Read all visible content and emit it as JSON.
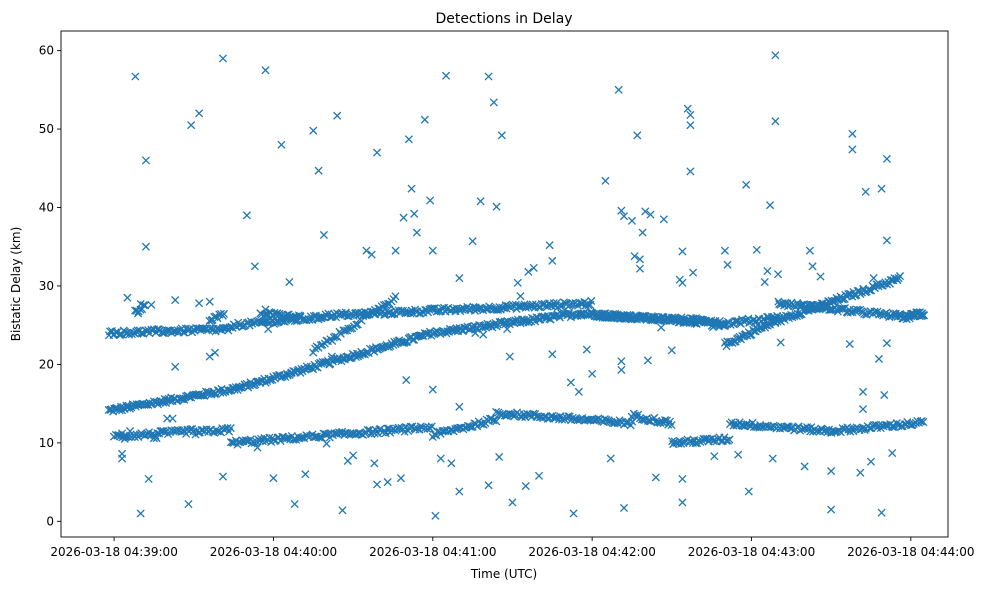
{
  "chart_data": {
    "type": "scatter",
    "title": "Detections in Delay",
    "xlabel": "Time (UTC)",
    "ylabel": "Bistatic Delay (km)",
    "x_unit": "seconds after 2026-03-18 04:39:00 UTC",
    "xlim": [
      -20,
      314
    ],
    "ylim": [
      -2,
      62.5
    ],
    "xticks": [
      {
        "value": 0,
        "label": "2026-03-18 04:39:00"
      },
      {
        "value": 60,
        "label": "2026-03-18 04:40:00"
      },
      {
        "value": 120,
        "label": "2026-03-18 04:41:00"
      },
      {
        "value": 180,
        "label": "2026-03-18 04:42:00"
      },
      {
        "value": 240,
        "label": "2026-03-18 04:43:00"
      },
      {
        "value": 300,
        "label": "2026-03-18 04:44:00"
      }
    ],
    "yticks": [
      0,
      10,
      20,
      30,
      40,
      50,
      60
    ],
    "marker": "x",
    "color": "#1f77b4",
    "grid": false,
    "tracks": [
      {
        "x": [
          [
            -2,
            47
          ],
          [
            47,
            120
          ],
          [
            120,
            176
          ],
          [
            176,
            230
          ],
          [
            230,
            249
          ],
          [
            249,
            296
          ],
          [
            296,
            305
          ]
        ],
        "y": [
          [
            14.1,
            17
          ],
          [
            17,
            24
          ],
          [
            24,
            26.5
          ],
          [
            26.5,
            25.2
          ],
          [
            22.5,
            25.5
          ],
          [
            25.5,
            31
          ],
          [
            26,
            26.5
          ]
        ],
        "step": 0.5
      },
      {
        "x": [
          [
            -2,
            45
          ],
          [
            45,
            78
          ],
          [
            78,
            180
          ],
          [
            180,
            225
          ],
          [
            225,
            250
          ],
          [
            250,
            300
          ],
          [
            300,
            305
          ]
        ],
        "y": [
          [
            24,
            24.5
          ],
          [
            25,
            26
          ],
          [
            26.2,
            27.8
          ],
          [
            26.3,
            25.5
          ],
          [
            25,
            26
          ],
          [
            27.8,
            26
          ],
          [
            26.3,
            26.5
          ]
        ],
        "step": 0.55
      },
      {
        "x": [
          [
            0,
            30
          ],
          [
            30,
            44
          ],
          [
            44,
            120
          ],
          [
            120,
            144
          ],
          [
            144,
            195
          ],
          [
            195,
            210
          ],
          [
            210,
            232
          ],
          [
            232,
            270
          ],
          [
            270,
            305
          ]
        ],
        "y": [
          [
            10.8,
            11.5
          ],
          [
            11.3,
            11.7
          ],
          [
            10,
            12
          ],
          [
            11,
            13
          ],
          [
            13.8,
            12.5
          ],
          [
            13.5,
            12.5
          ],
          [
            10,
            10.5
          ],
          [
            12.5,
            11.5
          ],
          [
            11.5,
            12.6
          ]
        ],
        "step": 0.6
      },
      {
        "x": [
          [
            75,
            106
          ]
        ],
        "y": [
          [
            21.7,
            28.5
          ]
        ],
        "step": 0.7
      },
      {
        "x": [
          [
            8,
            12
          ],
          [
            36,
            42
          ],
          [
            55,
            70
          ]
        ],
        "y": [
          [
            26.8,
            27.5
          ],
          [
            25.8,
            26.3
          ],
          [
            26.5,
            26.0
          ]
        ],
        "step": 0.6
      }
    ],
    "outliers": [
      [
        5,
        28.5
      ],
      [
        6,
        11.5
      ],
      [
        3,
        8
      ],
      [
        3,
        8.6
      ],
      [
        3,
        11.2
      ],
      [
        4,
        10.5
      ],
      [
        8,
        56.7
      ],
      [
        9,
        26.5
      ],
      [
        10,
        1
      ],
      [
        10,
        27.7
      ],
      [
        12,
        46
      ],
      [
        12,
        35
      ],
      [
        13,
        5.4
      ],
      [
        14,
        27.6
      ],
      [
        15,
        10.6
      ],
      [
        16,
        10.6
      ],
      [
        20,
        13.1
      ],
      [
        22,
        13.1
      ],
      [
        23,
        19.7
      ],
      [
        23,
        28.2
      ],
      [
        28,
        2.2
      ],
      [
        29,
        50.5
      ],
      [
        32,
        52
      ],
      [
        32,
        27.8
      ],
      [
        33,
        24.5
      ],
      [
        36,
        28
      ],
      [
        36,
        21
      ],
      [
        38,
        21.5
      ],
      [
        41,
        59
      ],
      [
        41,
        5.7
      ],
      [
        50,
        39
      ],
      [
        53,
        32.5
      ],
      [
        54,
        9.4
      ],
      [
        57,
        57.5
      ],
      [
        57,
        27
      ],
      [
        58,
        24.5
      ],
      [
        60,
        5.5
      ],
      [
        63,
        48
      ],
      [
        66,
        30.5
      ],
      [
        66,
        26
      ],
      [
        68,
        2.2
      ],
      [
        72,
        6
      ],
      [
        75,
        49.8
      ],
      [
        77,
        44.7
      ],
      [
        79,
        36.5
      ],
      [
        80,
        9.9
      ],
      [
        82,
        21
      ],
      [
        84,
        51.7
      ],
      [
        86,
        1.4
      ],
      [
        88,
        7.7
      ],
      [
        90,
        8.4
      ],
      [
        95,
        34.5
      ],
      [
        97,
        34
      ],
      [
        98,
        7.4
      ],
      [
        99,
        47
      ],
      [
        99,
        4.7
      ],
      [
        103,
        5
      ],
      [
        106,
        34.5
      ],
      [
        108,
        5.5
      ],
      [
        109,
        38.7
      ],
      [
        110,
        18
      ],
      [
        111,
        48.7
      ],
      [
        112,
        42.4
      ],
      [
        113,
        39.2
      ],
      [
        114,
        36.8
      ],
      [
        117,
        51.2
      ],
      [
        119,
        40.9
      ],
      [
        120,
        34.5
      ],
      [
        120,
        16.8
      ],
      [
        121,
        0.7
      ],
      [
        123,
        8
      ],
      [
        125,
        56.8
      ],
      [
        127,
        7.4
      ],
      [
        130,
        31
      ],
      [
        130,
        3.8
      ],
      [
        130,
        14.6
      ],
      [
        135,
        35.7
      ],
      [
        136,
        24
      ],
      [
        138,
        40.8
      ],
      [
        139,
        23.8
      ],
      [
        141,
        56.7
      ],
      [
        141,
        4.6
      ],
      [
        143,
        53.4
      ],
      [
        144,
        40.1
      ],
      [
        145,
        8.2
      ],
      [
        146,
        49.2
      ],
      [
        148,
        24.5
      ],
      [
        149,
        21
      ],
      [
        150,
        2.4
      ],
      [
        152,
        30.4
      ],
      [
        153,
        28.7
      ],
      [
        155,
        4.5
      ],
      [
        156,
        31.8
      ],
      [
        158,
        32.3
      ],
      [
        160,
        5.8
      ],
      [
        164,
        35.2
      ],
      [
        165,
        33.2
      ],
      [
        165,
        21.3
      ],
      [
        172,
        17.7
      ],
      [
        173,
        1
      ],
      [
        175,
        16.5
      ],
      [
        178,
        21.9
      ],
      [
        180,
        18.8
      ],
      [
        185,
        43.4
      ],
      [
        187,
        8
      ],
      [
        190,
        55
      ],
      [
        191,
        39.6
      ],
      [
        191,
        20.4
      ],
      [
        191,
        19.3
      ],
      [
        192,
        1.7
      ],
      [
        192,
        38.9
      ],
      [
        195,
        38.3
      ],
      [
        196,
        33.8
      ],
      [
        197,
        49.2
      ],
      [
        198,
        33.4
      ],
      [
        198,
        32.2
      ],
      [
        199,
        36.8
      ],
      [
        200,
        39.5
      ],
      [
        201,
        20.5
      ],
      [
        202,
        39.1
      ],
      [
        204,
        5.6
      ],
      [
        206,
        24.7
      ],
      [
        207,
        38.5
      ],
      [
        210,
        21.8
      ],
      [
        213,
        30.8
      ],
      [
        214,
        30.4
      ],
      [
        214,
        34.4
      ],
      [
        214,
        5.4
      ],
      [
        214,
        2.4
      ],
      [
        216,
        52.6
      ],
      [
        217,
        51.8
      ],
      [
        217,
        50.5
      ],
      [
        217,
        44.6
      ],
      [
        218,
        31.7
      ],
      [
        226,
        8.3
      ],
      [
        230,
        34.5
      ],
      [
        231,
        32.7
      ],
      [
        235,
        8.5
      ],
      [
        238,
        42.9
      ],
      [
        239,
        3.8
      ],
      [
        242,
        34.6
      ],
      [
        245,
        30.5
      ],
      [
        246,
        31.9
      ],
      [
        247,
        40.3
      ],
      [
        248,
        8
      ],
      [
        249,
        59.4
      ],
      [
        249,
        51
      ],
      [
        250,
        31.5
      ],
      [
        251,
        22.8
      ],
      [
        260,
        7
      ],
      [
        262,
        34.5
      ],
      [
        263,
        32.5
      ],
      [
        266,
        31.2
      ],
      [
        270,
        6.4
      ],
      [
        270,
        1.5
      ],
      [
        277,
        22.6
      ],
      [
        278,
        49.4
      ],
      [
        278,
        47.4
      ],
      [
        281,
        6.2
      ],
      [
        282,
        16.5
      ],
      [
        282,
        14.3
      ],
      [
        283,
        42
      ],
      [
        285,
        7.6
      ],
      [
        288,
        20.7
      ],
      [
        289,
        1.1
      ],
      [
        289,
        42.4
      ],
      [
        290,
        16.1
      ],
      [
        291,
        46.2
      ],
      [
        291,
        35.8
      ],
      [
        291,
        22.7
      ],
      [
        293,
        8.7
      ],
      [
        286,
        31
      ]
    ]
  }
}
